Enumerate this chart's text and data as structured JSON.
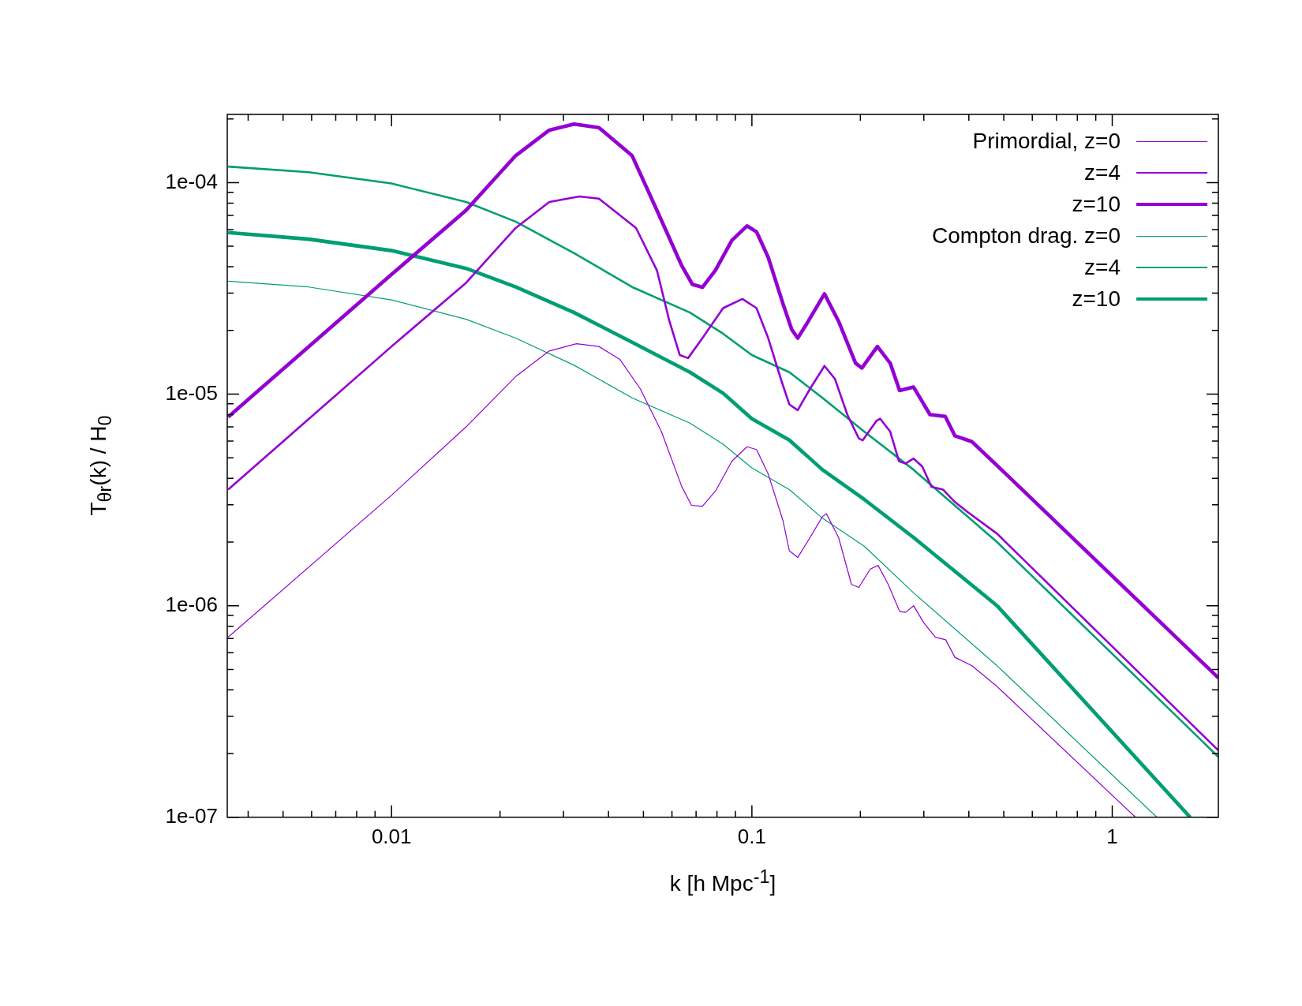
{
  "chart_data": {
    "type": "line",
    "xlabel": "k [h Mpc$^{-1}$]",
    "ylabel": "T$_{θr}$(k) / H$_{0}$",
    "log": "xy",
    "legend": "top right",
    "marker": "none",
    "xlim": [
      0.0035,
      1.97
    ],
    "ylim": [
      1e-07,
      0.00021
    ],
    "xticks": [
      {
        "value": 0.004,
        "label": null
      },
      {
        "value": 0.005,
        "label": null
      },
      {
        "value": 0.006,
        "label": null
      },
      {
        "value": 0.007,
        "label": null
      },
      {
        "value": 0.008,
        "label": null
      },
      {
        "value": 0.009,
        "label": null
      },
      0.01,
      {
        "value": 0.02,
        "label": null
      },
      {
        "value": 0.03,
        "label": null
      },
      {
        "value": 0.04,
        "label": null
      },
      {
        "value": 0.05,
        "label": null
      },
      {
        "value": 0.06,
        "label": null
      },
      {
        "value": 0.07,
        "label": null
      },
      {
        "value": 0.08,
        "label": null
      },
      {
        "value": 0.09,
        "label": null
      },
      0.1,
      {
        "value": 0.2,
        "label": null
      },
      {
        "value": 0.3,
        "label": null
      },
      {
        "value": 0.4,
        "label": null
      },
      {
        "value": 0.5,
        "label": null
      },
      {
        "value": 0.6,
        "label": null
      },
      {
        "value": 0.7,
        "label": null
      },
      {
        "value": 0.8,
        "label": null
      },
      {
        "value": 0.9,
        "label": null
      },
      1
    ],
    "yticks": [
      {
        "value": 1e-07,
        "label": "1e-07"
      },
      {
        "value": 2e-07,
        "label": null
      },
      {
        "value": 3e-07,
        "label": null
      },
      {
        "value": 4e-07,
        "label": null
      },
      {
        "value": 5e-07,
        "label": null
      },
      {
        "value": 6e-07,
        "label": null
      },
      {
        "value": 7e-07,
        "label": null
      },
      {
        "value": 8e-07,
        "label": null
      },
      {
        "value": 9e-07,
        "label": null
      },
      {
        "value": 1e-06,
        "label": "1e-06"
      },
      {
        "value": 2e-06,
        "label": null
      },
      {
        "value": 3e-06,
        "label": null
      },
      {
        "value": 4e-06,
        "label": null
      },
      {
        "value": 5e-06,
        "label": null
      },
      {
        "value": 6e-06,
        "label": null
      },
      {
        "value": 7e-06,
        "label": null
      },
      {
        "value": 8e-06,
        "label": null
      },
      {
        "value": 9e-06,
        "label": null
      },
      {
        "value": 1e-05,
        "label": "1e-05"
      },
      {
        "value": 2e-05,
        "label": null
      },
      {
        "value": 3e-05,
        "label": null
      },
      {
        "value": 4e-05,
        "label": null
      },
      {
        "value": 5e-05,
        "label": null
      },
      {
        "value": 6e-05,
        "label": null
      },
      {
        "value": 7e-05,
        "label": null
      },
      {
        "value": 8e-05,
        "label": null
      },
      {
        "value": 9e-05,
        "label": null
      },
      {
        "value": 0.0001,
        "label": "1e-04"
      },
      {
        "value": 0.0002,
        "label": null
      }
    ],
    "series": [
      {
        "name": "Primordial, z=0",
        "color": "#9400d3",
        "x": [
          0.00352,
          0.01,
          0.0161,
          0.0221,
          0.0274,
          0.0326,
          0.0376,
          0.043,
          0.049,
          0.0561,
          0.0639,
          0.068,
          0.0729,
          0.0792,
          0.088,
          0.0969,
          0.103,
          0.111,
          0.122,
          0.127,
          0.134,
          0.145,
          0.157,
          0.161,
          0.174,
          0.189,
          0.198,
          0.213,
          0.224,
          0.239,
          0.257,
          0.267,
          0.281,
          0.3,
          0.323,
          0.345,
          0.366,
          0.408,
          0.479,
          1.16
        ],
        "values": [
          7.1e-07,
          3.33e-06,
          7e-06,
          1.21e-05,
          1.6e-05,
          1.73e-05,
          1.68e-05,
          1.46e-05,
          1.06e-05,
          6.65e-06,
          3.65e-06,
          2.98e-06,
          2.95e-06,
          3.48e-06,
          4.82e-06,
          5.64e-06,
          5.47e-06,
          4.19e-06,
          2.52e-06,
          1.82e-06,
          1.69e-06,
          2.1e-06,
          2.64e-06,
          2.72e-06,
          2.1e-06,
          1.26e-06,
          1.22e-06,
          1.49e-06,
          1.55e-06,
          1.26e-06,
          9.4e-07,
          9.3e-07,
          1e-06,
          8.3e-07,
          7.1e-07,
          6.9e-07,
          5.7e-07,
          5.2e-07,
          4.15e-07,
          1e-07
        ]
      },
      {
        "name": "z=4",
        "color": "#9400d3",
        "x": [
          0.00352,
          0.01,
          0.0161,
          0.0221,
          0.0274,
          0.0332,
          0.0376,
          0.0477,
          0.0545,
          0.059,
          0.0631,
          0.0665,
          0.0729,
          0.0832,
          0.0941,
          0.103,
          0.111,
          0.1207,
          0.127,
          0.134,
          0.145,
          0.159,
          0.17,
          0.184,
          0.198,
          0.203,
          0.222,
          0.227,
          0.242,
          0.256,
          0.267,
          0.281,
          0.297,
          0.315,
          0.339,
          0.366,
          0.397,
          0.479,
          1.97
        ],
        "values": [
          3.54e-06,
          1.68e-05,
          3.36e-05,
          6.1e-05,
          8.1e-05,
          8.6e-05,
          8.4e-05,
          6.1e-05,
          3.85e-05,
          2.22e-05,
          1.53e-05,
          1.48e-05,
          1.84e-05,
          2.55e-05,
          2.82e-05,
          2.55e-05,
          1.84e-05,
          1.16e-05,
          8.95e-06,
          8.4e-06,
          1.06e-05,
          1.36e-05,
          1.18e-05,
          8e-06,
          6.18e-06,
          6.05e-06,
          7.5e-06,
          7.65e-06,
          6.65e-06,
          4.82e-06,
          4.7e-06,
          4.96e-06,
          4.55e-06,
          3.65e-06,
          3.54e-06,
          3.09e-06,
          2.77e-06,
          2.19e-06,
          2.07e-07
        ]
      },
      {
        "name": "z=10",
        "color": "#9400d3",
        "x": [
          0.00352,
          0.01,
          0.0161,
          0.0221,
          0.0274,
          0.0321,
          0.0376,
          0.0465,
          0.0545,
          0.0639,
          0.0684,
          0.0729,
          0.0792,
          0.088,
          0.0969,
          0.103,
          0.111,
          0.122,
          0.129,
          0.134,
          0.141,
          0.159,
          0.174,
          0.194,
          0.202,
          0.223,
          0.242,
          0.257,
          0.281,
          0.312,
          0.344,
          0.366,
          0.408,
          0.479,
          1.97
        ],
        "values": [
          7.8e-06,
          3.68e-05,
          7.4e-05,
          0.000134,
          0.000177,
          0.000189,
          0.000182,
          0.000134,
          7.4e-05,
          4.04e-05,
          3.3e-05,
          3.2e-05,
          3.85e-05,
          5.33e-05,
          6.24e-05,
          5.85e-05,
          4.43e-05,
          2.67e-05,
          2.02e-05,
          1.84e-05,
          2.11e-05,
          2.98e-05,
          2.21e-05,
          1.4e-05,
          1.33e-05,
          1.68e-05,
          1.4e-05,
          1.04e-05,
          1.08e-05,
          8e-06,
          7.85e-06,
          6.35e-06,
          5.96e-06,
          4.6e-06,
          4.56e-07
        ]
      },
      {
        "name": "Compton drag. z=0",
        "color": "#009e73",
        "x": [
          0.00352,
          0.00589,
          0.01,
          0.0161,
          0.0221,
          0.0321,
          0.0465,
          0.0673,
          0.0832,
          0.1,
          0.127,
          0.157,
          0.205,
          0.281,
          0.479,
          1.33
        ],
        "values": [
          3.42e-05,
          3.21e-05,
          2.79e-05,
          2.26e-05,
          1.84e-05,
          1.37e-05,
          9.6e-06,
          7.3e-06,
          5.8e-06,
          4.48e-06,
          3.54e-06,
          2.59e-06,
          1.91e-06,
          1.15e-06,
          5.2e-07,
          1e-07
        ]
      },
      {
        "name": "z=4",
        "color": "#009e73",
        "x": [
          0.00352,
          0.00589,
          0.01,
          0.0161,
          0.0221,
          0.0321,
          0.0465,
          0.0673,
          0.0832,
          0.1,
          0.127,
          0.157,
          0.205,
          0.281,
          0.479,
          1.97
        ],
        "values": [
          0.000119,
          0.000112,
          9.9e-05,
          8.1e-05,
          6.54e-05,
          4.64e-05,
          3.21e-05,
          2.43e-05,
          1.93e-05,
          1.53e-05,
          1.27e-05,
          9.6e-06,
          6.65e-06,
          4.39e-06,
          2e-06,
          1.93e-07
        ]
      },
      {
        "name": "z=10",
        "color": "#009e73",
        "x": [
          0.00352,
          0.00589,
          0.01,
          0.0161,
          0.0221,
          0.0321,
          0.0465,
          0.0673,
          0.0832,
          0.1,
          0.127,
          0.157,
          0.205,
          0.281,
          0.479,
          1.645
        ],
        "values": [
          5.8e-05,
          5.4e-05,
          4.77e-05,
          3.93e-05,
          3.21e-05,
          2.43e-05,
          1.76e-05,
          1.27e-05,
          1.01e-05,
          7.65e-06,
          6.07e-06,
          4.39e-06,
          3.18e-06,
          2.1e-06,
          1e-06,
          1e-07
        ]
      }
    ]
  }
}
